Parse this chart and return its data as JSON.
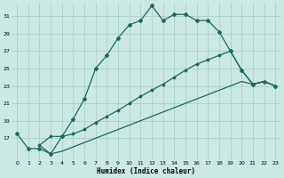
{
  "xlabel": "Humidex (Indice chaleur)",
  "background_color": "#cce8e4",
  "grid_color": "#aacfcc",
  "line_color": "#1a6b5a",
  "xlim": [
    -0.5,
    23.5
  ],
  "ylim": [
    14.5,
    32.5
  ],
  "yticks": [
    17,
    19,
    21,
    23,
    25,
    27,
    29,
    31
  ],
  "xticks": [
    0,
    1,
    2,
    3,
    4,
    5,
    6,
    7,
    8,
    9,
    10,
    11,
    12,
    13,
    14,
    15,
    16,
    17,
    18,
    19,
    20,
    21,
    22,
    23
  ],
  "curve1_x": [
    0,
    1,
    2,
    3,
    4,
    5,
    6,
    7,
    8,
    9,
    10,
    11,
    12,
    13,
    14,
    15,
    16,
    17,
    18,
    19,
    20,
    21,
    22,
    23
  ],
  "curve1_y": [
    17.5,
    15.8,
    15.8,
    15.2,
    17.2,
    19.2,
    21.5,
    25.0,
    26.5,
    28.5,
    30.0,
    30.5,
    32.2,
    30.5,
    31.2,
    31.2,
    30.5,
    30.5,
    29.2,
    27.0,
    24.8,
    23.2,
    23.5,
    23.0
  ],
  "curve2_x": [
    2,
    3,
    4,
    5,
    6,
    7,
    8,
    9,
    10,
    11,
    12,
    13,
    14,
    15,
    16,
    17,
    18,
    19,
    20,
    21,
    22,
    23
  ],
  "curve2_y": [
    16.2,
    17.2,
    17.2,
    17.5,
    18.0,
    18.8,
    19.5,
    20.2,
    21.0,
    21.8,
    22.5,
    23.2,
    24.0,
    24.8,
    25.5,
    26.0,
    26.5,
    27.0,
    24.8,
    23.2,
    23.5,
    23.0
  ],
  "curve3_x": [
    2,
    3,
    4,
    5,
    6,
    7,
    8,
    9,
    10,
    11,
    12,
    13,
    14,
    15,
    16,
    17,
    18,
    19,
    20,
    21,
    22,
    23
  ],
  "curve3_y": [
    16.2,
    15.2,
    15.5,
    16.0,
    16.5,
    17.0,
    17.5,
    18.0,
    18.5,
    19.0,
    19.5,
    20.0,
    20.5,
    21.0,
    21.5,
    22.0,
    22.5,
    23.0,
    23.5,
    23.2,
    23.5,
    23.0
  ]
}
